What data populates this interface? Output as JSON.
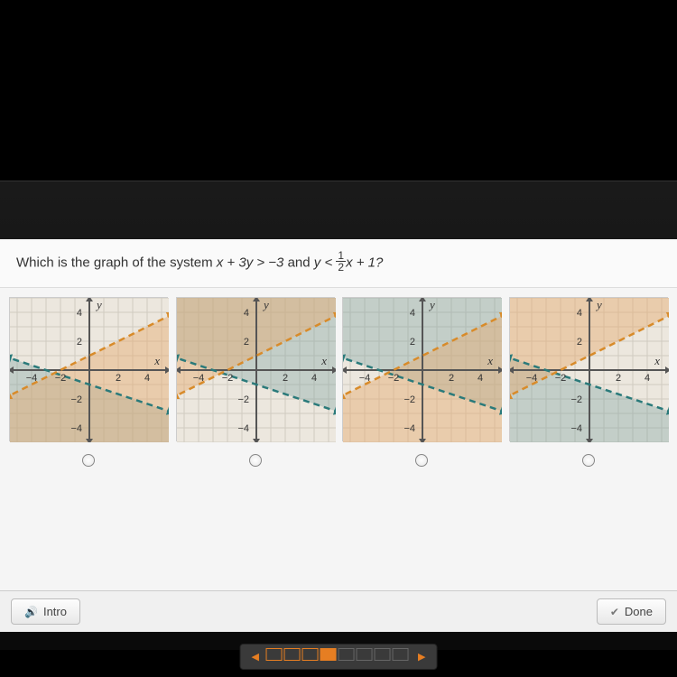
{
  "indicator": "M",
  "question": {
    "prefix": "Which is the graph of the system ",
    "ineq1": "x + 3y > −3",
    "mid": " and ",
    "ineq2_pre": "y < ",
    "frac_num": "1",
    "frac_den": "2",
    "ineq2_post": "x + 1?"
  },
  "axes": {
    "y_label": "y",
    "x_label": "x"
  },
  "ticks": {
    "n4": "−4",
    "n2": "−2",
    "p2": "2",
    "p4": "4"
  },
  "colors": {
    "grid": "#d0cbc0",
    "axis": "#555555",
    "teal": "#2a7a7a",
    "orange": "#d88b2a",
    "teal_fill": "rgba(120,160,160,0.35)",
    "orange_fill": "rgba(230,170,110,0.45)",
    "overlap_fill": "rgba(150,130,100,0.55)",
    "graph_bg": "#ece7de"
  },
  "graphs": [
    {
      "teal_region": "below",
      "orange_region": "below",
      "overlap": "lower-right"
    },
    {
      "teal_region": "above",
      "orange_region": "above",
      "overlap": "upper-right"
    },
    {
      "teal_region": "above",
      "orange_region": "below",
      "overlap": "right-wedge"
    },
    {
      "teal_region": "below",
      "orange_region": "above",
      "overlap": "left-wedge"
    }
  ],
  "buttons": {
    "intro": "Intro",
    "done": "Done"
  },
  "progress": {
    "boxes": [
      "empty",
      "empty",
      "empty",
      "filled",
      "done",
      "done",
      "done",
      "done"
    ]
  }
}
